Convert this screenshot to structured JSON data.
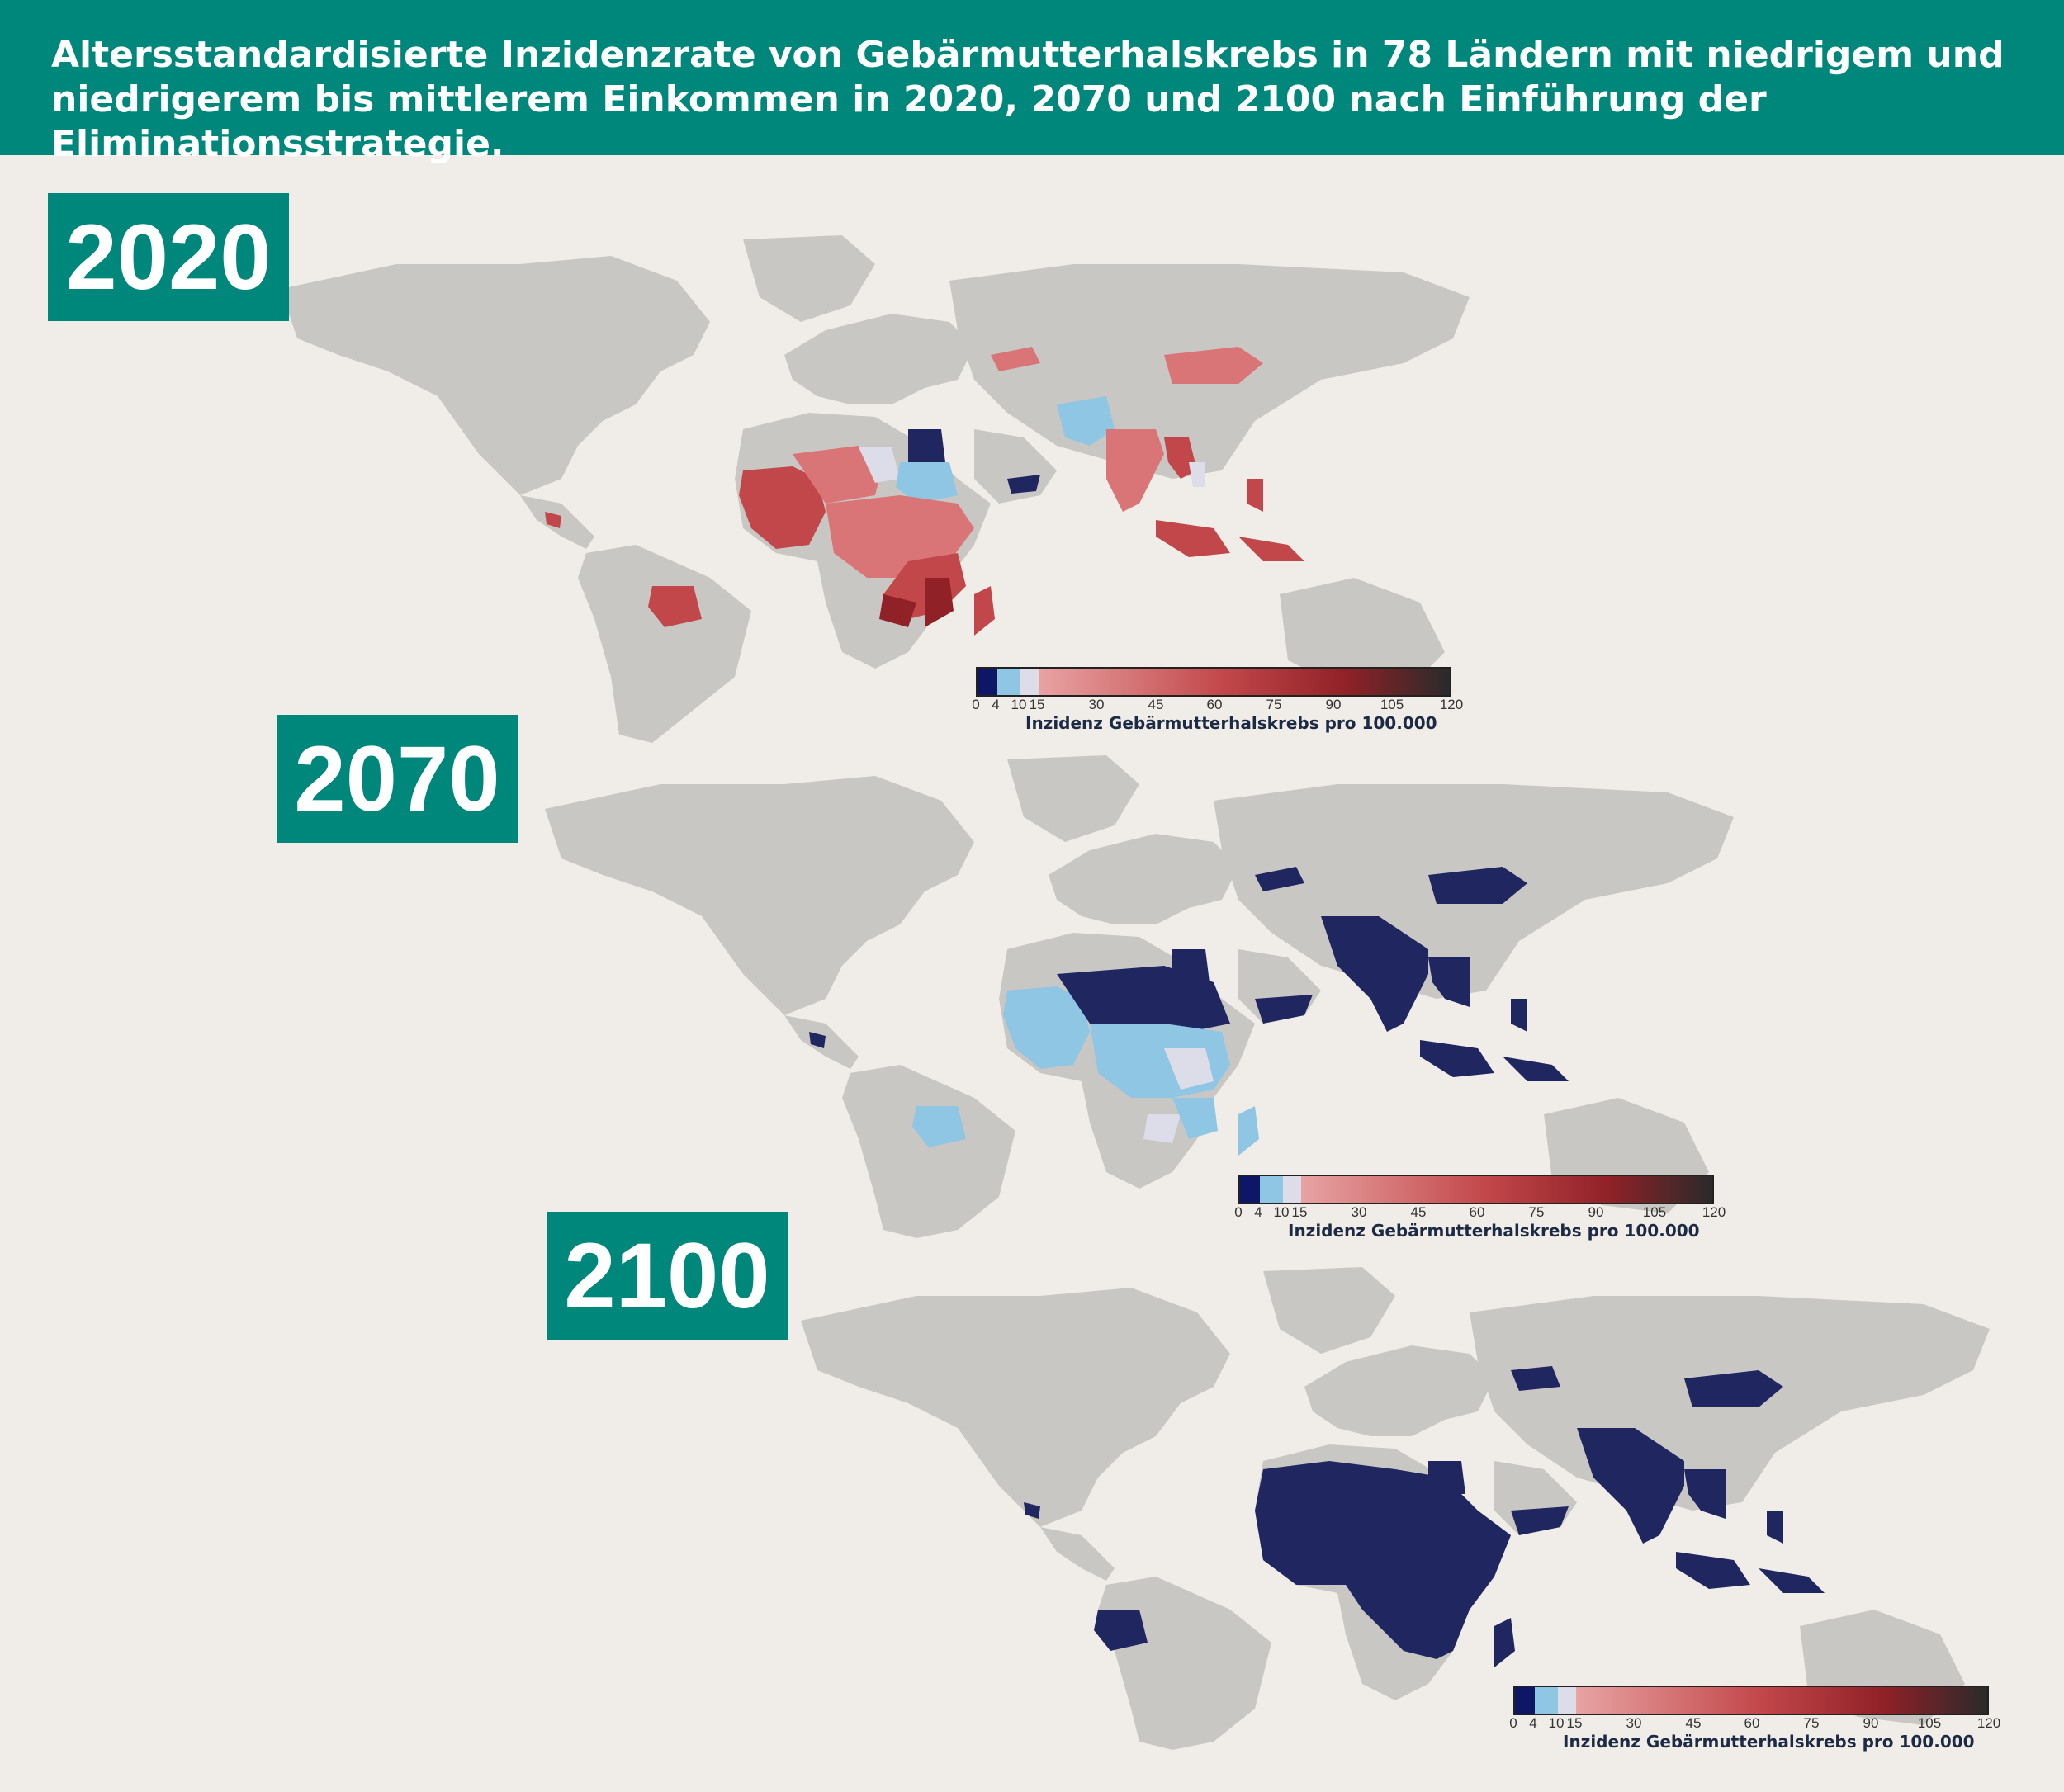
{
  "title": "Altersstandardisierte Inzidenzrate von Gebärmutterhalskrebs in 78 Ländern mit niedrigem und niedrigerem bis mittlerem Einkommen in 2020, 2070 und 2100 nach Einführung der Eliminationsstrategie.",
  "colors": {
    "header": "#00877b",
    "land_gray": "#c9c7c4",
    "dark_navy": "#1f2660",
    "light_blue": "#8ec6e3",
    "pale": "#dcdde8",
    "red_light": "#d97576",
    "red": "#c2474a",
    "red_dark": "#8f2127"
  },
  "panels": [
    {
      "year": "2020",
      "legend": {
        "ticks": [
          "0",
          "4",
          "10",
          "15",
          "30",
          "45",
          "60",
          "75",
          "90",
          "105",
          "120"
        ],
        "caption": "Inzidenz Gebärmutterhalskrebs pro 100.000"
      }
    },
    {
      "year": "2070",
      "legend": {
        "ticks": [
          "0",
          "4",
          "10",
          "15",
          "30",
          "45",
          "60",
          "75",
          "90",
          "105",
          "120"
        ],
        "caption": "Inzidenz Gebärmutterhalskrebs pro 100.000"
      }
    },
    {
      "year": "2100",
      "legend": {
        "ticks": [
          "0",
          "4",
          "10",
          "15",
          "30",
          "45",
          "60",
          "75",
          "90",
          "105",
          "120"
        ],
        "caption": "Inzidenz Gebärmutterhalskrebs pro 100.000"
      }
    }
  ]
}
